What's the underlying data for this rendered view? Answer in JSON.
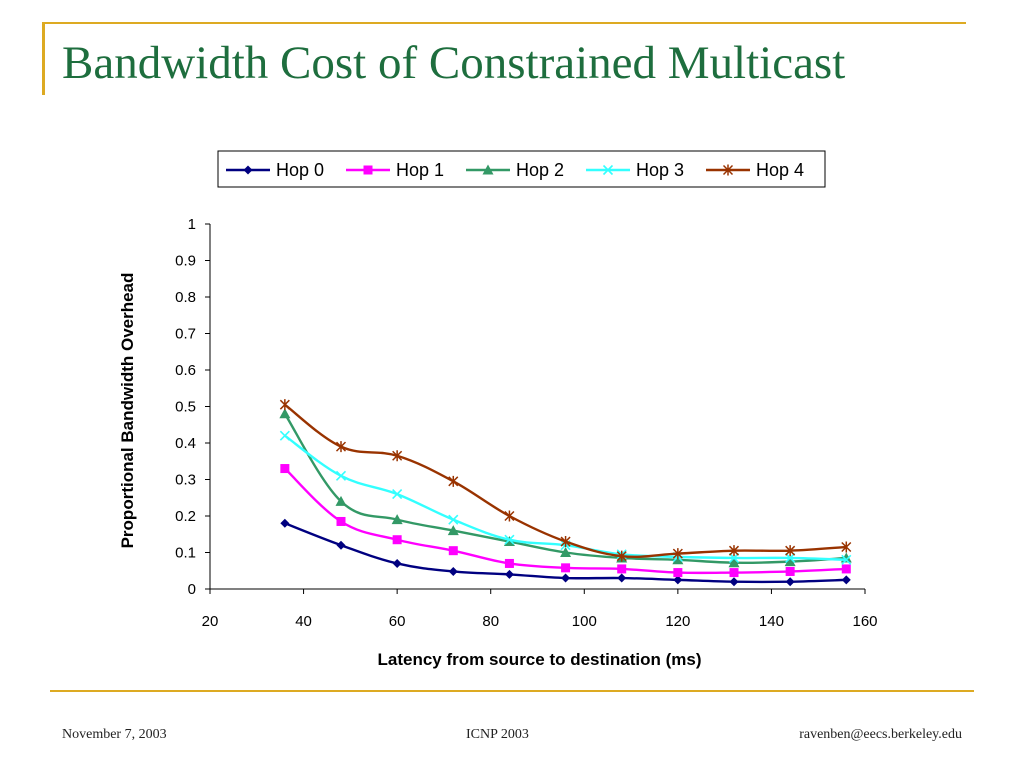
{
  "slide": {
    "title": "Bandwidth Cost of Constrained Multicast",
    "footer_left": "November 7, 2003",
    "footer_center": "ICNP 2003",
    "footer_right": "ravenben@eecs.berkeley.edu",
    "accent_color": "#DDAA22",
    "title_color": "#1E6E3E"
  },
  "chart_data": {
    "type": "line",
    "title": "",
    "xlabel": "Latency from source to destination (ms)",
    "ylabel": "Proportional Bandwidth Overhead",
    "xlim": [
      20,
      160
    ],
    "ylim": [
      0,
      1
    ],
    "xticks": [
      20,
      40,
      60,
      80,
      100,
      120,
      140,
      160
    ],
    "yticks": [
      0,
      0.1,
      0.2,
      0.3,
      0.4,
      0.5,
      0.6,
      0.7,
      0.8,
      0.9,
      1
    ],
    "legend": "top",
    "grid": false,
    "series": [
      {
        "name": "Hop 0",
        "color": "#000080",
        "marker": "diamond",
        "points": [
          [
            36,
            0.18
          ],
          [
            48,
            0.12
          ],
          [
            60,
            0.07
          ],
          [
            72,
            0.048
          ],
          [
            84,
            0.04
          ],
          [
            96,
            0.03
          ],
          [
            108,
            0.03
          ],
          [
            120,
            0.025
          ],
          [
            132,
            0.02
          ],
          [
            144,
            0.02
          ],
          [
            156,
            0.025
          ]
        ]
      },
      {
        "name": "Hop 1",
        "color": "#FF00FF",
        "marker": "square",
        "points": [
          [
            36,
            0.33
          ],
          [
            48,
            0.185
          ],
          [
            60,
            0.135
          ],
          [
            72,
            0.105
          ],
          [
            84,
            0.07
          ],
          [
            96,
            0.058
          ],
          [
            108,
            0.055
          ],
          [
            120,
            0.045
          ],
          [
            132,
            0.045
          ],
          [
            144,
            0.048
          ],
          [
            156,
            0.055
          ]
        ]
      },
      {
        "name": "Hop 2",
        "color": "#339966",
        "marker": "triangle",
        "points": [
          [
            36,
            0.48
          ],
          [
            48,
            0.24
          ],
          [
            60,
            0.19
          ],
          [
            72,
            0.16
          ],
          [
            84,
            0.13
          ],
          [
            96,
            0.1
          ],
          [
            108,
            0.085
          ],
          [
            120,
            0.08
          ],
          [
            132,
            0.072
          ],
          [
            144,
            0.075
          ],
          [
            156,
            0.085
          ]
        ]
      },
      {
        "name": "Hop 3",
        "color": "#33FFFF",
        "marker": "x",
        "points": [
          [
            36,
            0.42
          ],
          [
            48,
            0.31
          ],
          [
            60,
            0.26
          ],
          [
            72,
            0.19
          ],
          [
            84,
            0.135
          ],
          [
            96,
            0.12
          ],
          [
            108,
            0.095
          ],
          [
            120,
            0.088
          ],
          [
            132,
            0.085
          ],
          [
            144,
            0.085
          ],
          [
            156,
            0.08
          ]
        ]
      },
      {
        "name": "Hop 4",
        "color": "#993300",
        "marker": "star",
        "points": [
          [
            36,
            0.505
          ],
          [
            48,
            0.39
          ],
          [
            60,
            0.365
          ],
          [
            72,
            0.295
          ],
          [
            84,
            0.2
          ],
          [
            96,
            0.13
          ],
          [
            108,
            0.09
          ],
          [
            120,
            0.097
          ],
          [
            132,
            0.105
          ],
          [
            144,
            0.105
          ],
          [
            156,
            0.115
          ]
        ]
      }
    ]
  }
}
